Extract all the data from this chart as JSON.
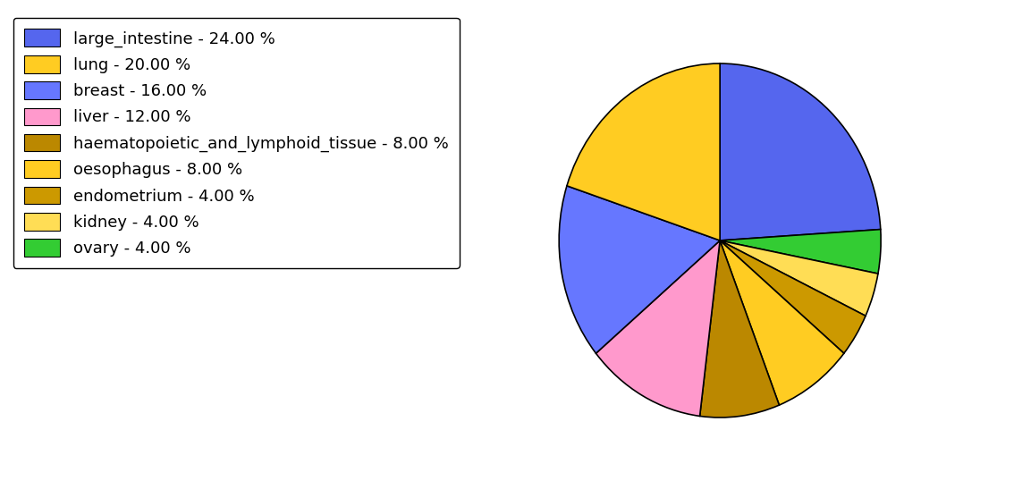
{
  "labels": [
    "large_intestine - 24.00 %",
    "lung - 20.00 %",
    "breast - 16.00 %",
    "liver - 12.00 %",
    "haematopoietic_and_lymphoid_tissue - 8.00 %",
    "oesophagus - 8.00 %",
    "endometrium - 4.00 %",
    "kidney - 4.00 %",
    "ovary - 4.00 %"
  ],
  "values": [
    24,
    20,
    16,
    12,
    8,
    8,
    4,
    4,
    4
  ],
  "colors": [
    "#5566ee",
    "#ffcc22",
    "#6677ff",
    "#ff99cc",
    "#bb8800",
    "#ffcc22",
    "#cc9900",
    "#ffdd55",
    "#33cc33"
  ],
  "pie_order_values": [
    24,
    4,
    4,
    4,
    8,
    8,
    12,
    16,
    20
  ],
  "pie_order_colors": [
    "#5566ee",
    "#33cc33",
    "#ffdd55",
    "#cc9900",
    "#ffcc22",
    "#bb8800",
    "#ff99cc",
    "#6677ff",
    "#ffcc22"
  ],
  "startangle": 90,
  "figsize": [
    11.34,
    5.38
  ],
  "dpi": 100
}
